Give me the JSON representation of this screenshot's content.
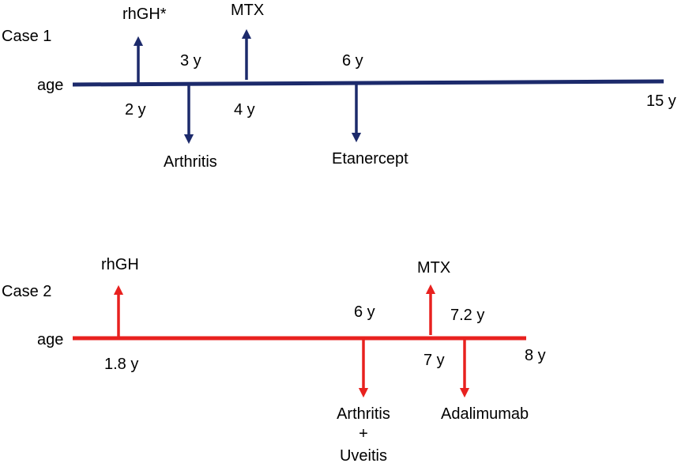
{
  "colors": {
    "case1": "#1c2a6b",
    "case2": "#e8211f",
    "text": "#000000"
  },
  "case1": {
    "title": "Case 1",
    "axis_label": "age",
    "end_label": "15 y",
    "events_above": [
      {
        "name": "rhGH*",
        "age": "2 y"
      },
      {
        "name": "MTX",
        "age": "4 y"
      }
    ],
    "events_below": [
      {
        "name": "Arthritis",
        "age": "3 y"
      },
      {
        "name": "Etanercept",
        "age": "6 y"
      }
    ]
  },
  "case2": {
    "title": "Case 2",
    "axis_label": "age",
    "end_label": "8 y",
    "events_above": [
      {
        "name": "rhGH",
        "age": "1.8 y"
      },
      {
        "name": "MTX",
        "age": "7 y"
      }
    ],
    "events_below": [
      {
        "name_lines": [
          "Arthritis",
          "+",
          "Uveitis"
        ],
        "age": "6 y"
      },
      {
        "name": "Adalimumab",
        "age": "7.2 y"
      }
    ]
  }
}
